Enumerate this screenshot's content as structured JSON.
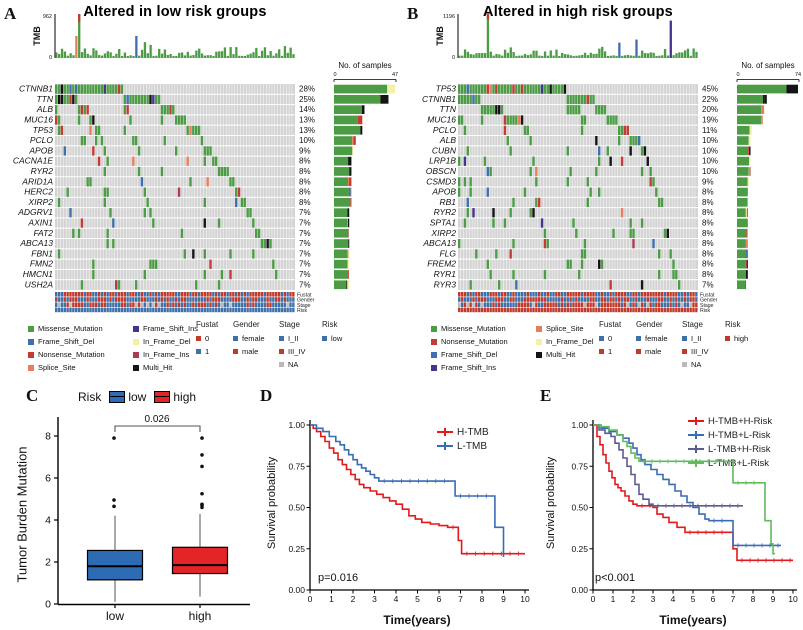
{
  "chart_data": [
    {
      "type": "oncoplot-waterfall",
      "panel_letter": "A",
      "title": "Altered in low risk groups",
      "tmb_axis": {
        "label": "TMB",
        "max": "962",
        "min": "0"
      },
      "samples_axis": {
        "label": "No. of samples",
        "min": "0",
        "max": "47"
      },
      "genes": [
        "CTNNB1",
        "TTN",
        "ALB",
        "MUC16",
        "TP53",
        "PCLO",
        "APOB",
        "CACNA1E",
        "RYR2",
        "ARID1A",
        "HERC2",
        "XIRP2",
        "ADGRV1",
        "AXIN1",
        "FAT2",
        "ABCA13",
        "FBN1",
        "FMN2",
        "HMCN1",
        "USH2A"
      ],
      "alteration_pct": [
        28,
        25,
        14,
        13,
        13,
        10,
        9,
        8,
        8,
        8,
        8,
        8,
        7,
        7,
        7,
        7,
        7,
        7,
        7,
        7
      ],
      "clinical_tracks": [
        "Fustat",
        "Gender",
        "Stage",
        "Risk"
      ],
      "n_columns": 84,
      "seed": 42,
      "matrix_bg": "#d4d4d4",
      "cell_color_weights": [
        {
          "color": "#4c9b45",
          "w": 0.78
        },
        {
          "color": "#3f6fae",
          "w": 0.05
        },
        {
          "color": "#c43b34",
          "w": 0.05
        },
        {
          "color": "#e97c5a",
          "w": 0.04
        },
        {
          "color": "#141414",
          "w": 0.05
        },
        {
          "color": "#45348e",
          "w": 0.02
        },
        {
          "color": "#aa3b52",
          "w": 0.01
        }
      ],
      "tmb_spikes": [
        {
          "c": 7,
          "f": 0.5,
          "color": "#e97c5a"
        },
        {
          "c": 8,
          "f": 1.0,
          "color": "#4c9b45",
          "tip": {
            "f": 0.18,
            "color": "#c43b34"
          }
        },
        {
          "c": 28,
          "f": 0.5,
          "color": "#3f6fae"
        },
        {
          "c": 31,
          "f": 0.36,
          "color": "#4c9b45"
        },
        {
          "c": 33,
          "f": 0.3,
          "color": "#4c9b45"
        }
      ],
      "track_fractions": {
        "fustat_red": 0.62,
        "gender_blue": 0.6,
        "stage_blue": 0.55,
        "stage_red": 0.35,
        "risk_color": "#3d6fa8"
      },
      "mutation_legend_cols": [
        [
          {
            "label": "Missense_Mutation",
            "color": "#4c9b45"
          },
          {
            "label": "Frame_Shift_Del",
            "color": "#3f6fae"
          },
          {
            "label": "Nonsense_Mutation",
            "color": "#c43b34"
          },
          {
            "label": "Splice_Site",
            "color": "#e97c5a"
          }
        ],
        [
          {
            "label": "Frame_Shift_Ins",
            "color": "#45348e"
          },
          {
            "label": "In_Frame_Del",
            "color": "#f3f1a3"
          },
          {
            "label": "In_Frame_Ins",
            "color": "#aa3b52"
          },
          {
            "label": "Multi_Hit",
            "color": "#141414"
          }
        ]
      ],
      "clinical_legend": [
        {
          "title": "Fustat",
          "items": [
            {
              "label": "0",
              "color": "#c0392b"
            },
            {
              "label": "1",
              "color": "#3d6fa8"
            }
          ]
        },
        {
          "title": "Gender",
          "items": [
            {
              "label": "female",
              "color": "#3d6fa8"
            },
            {
              "label": "male",
              "color": "#c0392b"
            }
          ]
        },
        {
          "title": "Stage",
          "items": [
            {
              "label": "I_II",
              "color": "#3d6fa8"
            },
            {
              "label": "III_IV",
              "color": "#c0392b"
            },
            {
              "label": "NA",
              "color": "#b9b9b9"
            }
          ]
        },
        {
          "title": "Risk",
          "items": [
            {
              "label": "low",
              "color": "#3d6fa8"
            }
          ]
        }
      ]
    },
    {
      "type": "oncoplot-waterfall",
      "panel_letter": "B",
      "title": "Altered in high risk groups",
      "tmb_axis": {
        "label": "TMB",
        "max": "1196",
        "min": "0"
      },
      "samples_axis": {
        "label": "No. of samples",
        "min": "0",
        "max": "74"
      },
      "genes": [
        "TP53",
        "CTNNB1",
        "TTN",
        "MUC16",
        "PCLO",
        "ALB",
        "CUBN",
        "LRP1B",
        "OBSCN",
        "CSMD3",
        "APOB",
        "RB1",
        "RYR2",
        "SPTA1",
        "XIRP2",
        "ABCA13",
        "FLG",
        "FREM2",
        "RYR1",
        "RYR3"
      ],
      "alteration_pct": [
        45,
        22,
        20,
        19,
        11,
        10,
        10,
        10,
        10,
        9,
        8,
        8,
        8,
        8,
        8,
        8,
        8,
        8,
        8,
        7
      ],
      "clinical_tracks": [
        "Fustat",
        "Gender",
        "Stage",
        "Risk"
      ],
      "n_columns": 84,
      "seed": 1337,
      "matrix_bg": "#d4d4d4",
      "cell_color_weights": [
        {
          "color": "#4c9b45",
          "w": 0.78
        },
        {
          "color": "#3f6fae",
          "w": 0.05
        },
        {
          "color": "#c43b34",
          "w": 0.05
        },
        {
          "color": "#e97c5a",
          "w": 0.04
        },
        {
          "color": "#141414",
          "w": 0.05
        },
        {
          "color": "#45348e",
          "w": 0.02
        },
        {
          "color": "#aa3b52",
          "w": 0.01
        }
      ],
      "tmb_spikes": [
        {
          "c": 10,
          "f": 1.0,
          "color": "#4c9b45",
          "tip": {
            "f": 0.12,
            "color": "#c43b34"
          }
        },
        {
          "c": 56,
          "f": 0.35,
          "color": "#3f6fae"
        },
        {
          "c": 62,
          "f": 0.42,
          "color": "#3f6fae"
        },
        {
          "c": 74,
          "f": 0.85,
          "color": "#45348e"
        }
      ],
      "track_fractions": {
        "fustat_red": 0.55,
        "gender_blue": 0.52,
        "stage_blue": 0.45,
        "stage_red": 0.45,
        "risk_color": "#c0392b"
      },
      "mutation_legend_cols": [
        [
          {
            "label": "Missense_Mutation",
            "color": "#4c9b45"
          },
          {
            "label": "Nonsense_Mutation",
            "color": "#c43b34"
          },
          {
            "label": "Frame_Shift_Del",
            "color": "#3f6fae"
          },
          {
            "label": "Frame_Shift_Ins",
            "color": "#45348e"
          }
        ],
        [
          {
            "label": "Splice_Site",
            "color": "#e97c5a"
          },
          {
            "label": "In_Frame_Del",
            "color": "#f3f1a3"
          },
          {
            "label": "Multi_Hit",
            "color": "#141414"
          }
        ]
      ],
      "clinical_legend": [
        {
          "title": "Fustat",
          "items": [
            {
              "label": "0",
              "color": "#3d6fa8"
            },
            {
              "label": "1",
              "color": "#c0392b"
            }
          ]
        },
        {
          "title": "Gender",
          "items": [
            {
              "label": "female",
              "color": "#3d6fa8"
            },
            {
              "label": "male",
              "color": "#c0392b"
            }
          ]
        },
        {
          "title": "Stage",
          "items": [
            {
              "label": "I_II",
              "color": "#3d6fa8"
            },
            {
              "label": "III_IV",
              "color": "#c0392b"
            },
            {
              "label": "NA",
              "color": "#b9b9b9"
            }
          ]
        },
        {
          "title": "Risk",
          "items": [
            {
              "label": "high",
              "color": "#c0392b"
            }
          ]
        }
      ]
    },
    {
      "type": "box",
      "panel_letter": "C",
      "ylabel": "Tumor Burden Mutation",
      "legend_title": "Risk",
      "p_label": "0.026",
      "yticks": [
        0,
        2,
        4,
        6,
        8
      ],
      "groups": [
        {
          "name": "low",
          "color": "#2d6cb5",
          "stats": {
            "low": 0.1,
            "q1": 1.15,
            "med": 1.8,
            "q3": 2.55,
            "high": 4.2
          },
          "outliers": [
            4.65,
            4.95,
            7.9
          ]
        },
        {
          "name": "high",
          "color": "#e32528",
          "stats": {
            "low": 0.35,
            "q1": 1.45,
            "med": 1.85,
            "q3": 2.7,
            "high": 4.3
          },
          "outliers": [
            4.6,
            4.7,
            4.75,
            5.25,
            6.55,
            7.1,
            7.9
          ]
        }
      ]
    },
    {
      "type": "km",
      "panel_letter": "D",
      "ylabel": "Survival probability",
      "xlabel": "Time(years)",
      "p_label": "p=0.016",
      "xticks": [
        0,
        1,
        2,
        3,
        4,
        5,
        6,
        7,
        8,
        9,
        10
      ],
      "ytick_labels": [
        "0.00",
        "0.25",
        "0.50",
        "0.75",
        "1.00"
      ],
      "series": [
        {
          "name": "H-TMB",
          "color": "#e31a1c",
          "points": [
            [
              0,
              1
            ],
            [
              0.15,
              0.98
            ],
            [
              0.3,
              0.96
            ],
            [
              0.5,
              0.93
            ],
            [
              0.7,
              0.9
            ],
            [
              0.9,
              0.86
            ],
            [
              1.1,
              0.83
            ],
            [
              1.3,
              0.79
            ],
            [
              1.5,
              0.76
            ],
            [
              1.7,
              0.73
            ],
            [
              1.9,
              0.7
            ],
            [
              2.1,
              0.67
            ],
            [
              2.3,
              0.64
            ],
            [
              2.5,
              0.62
            ],
            [
              2.8,
              0.6
            ],
            [
              3.1,
              0.58
            ],
            [
              3.4,
              0.56
            ],
            [
              3.7,
              0.54
            ],
            [
              4,
              0.52
            ],
            [
              4.3,
              0.49
            ],
            [
              4.6,
              0.45
            ],
            [
              4.9,
              0.43
            ],
            [
              5.2,
              0.41
            ],
            [
              5.6,
              0.4
            ],
            [
              6,
              0.39
            ],
            [
              6.4,
              0.38
            ],
            [
              6.9,
              0.3
            ],
            [
              7.05,
              0.22
            ],
            [
              10,
              0.22
            ]
          ]
        },
        {
          "name": "L-TMB",
          "color": "#3a6cb3",
          "points": [
            [
              0,
              1
            ],
            [
              0.3,
              0.98
            ],
            [
              0.6,
              0.96
            ],
            [
              0.9,
              0.93
            ],
            [
              1.2,
              0.9
            ],
            [
              1.4,
              0.88
            ],
            [
              1.6,
              0.85
            ],
            [
              1.8,
              0.82
            ],
            [
              2,
              0.79
            ],
            [
              2.2,
              0.76
            ],
            [
              2.4,
              0.74
            ],
            [
              2.6,
              0.72
            ],
            [
              2.8,
              0.7
            ],
            [
              3,
              0.68
            ],
            [
              3.2,
              0.66
            ],
            [
              6.6,
              0.66
            ],
            [
              6.75,
              0.57
            ],
            [
              8.5,
              0.57
            ],
            [
              8.6,
              0.38
            ],
            [
              8.95,
              0.38
            ],
            [
              9,
              0.2
            ]
          ]
        }
      ]
    },
    {
      "type": "km",
      "panel_letter": "E",
      "ylabel": "Survival probability",
      "xlabel": "Time(years)",
      "p_label": "p<0.001",
      "xticks": [
        0,
        1,
        2,
        3,
        4,
        5,
        6,
        7,
        8,
        9,
        10
      ],
      "ytick_labels": [
        "0.00",
        "0.25",
        "0.50",
        "0.75",
        "1.00"
      ],
      "series": [
        {
          "name": "H-TMB+H-Risk",
          "color": "#e31a1c",
          "points": [
            [
              0,
              1
            ],
            [
              0.2,
              0.93
            ],
            [
              0.35,
              0.88
            ],
            [
              0.5,
              0.82
            ],
            [
              0.65,
              0.77
            ],
            [
              0.8,
              0.72
            ],
            [
              0.95,
              0.68
            ],
            [
              1.1,
              0.64
            ],
            [
              1.25,
              0.62
            ],
            [
              1.4,
              0.6
            ],
            [
              1.6,
              0.57
            ],
            [
              1.8,
              0.54
            ],
            [
              2,
              0.52
            ],
            [
              2.2,
              0.51
            ],
            [
              3,
              0.5
            ],
            [
              3.2,
              0.46
            ],
            [
              3.5,
              0.44
            ],
            [
              3.8,
              0.41
            ],
            [
              4.2,
              0.38
            ],
            [
              4.6,
              0.35
            ],
            [
              6.8,
              0.35
            ],
            [
              7,
              0.25
            ],
            [
              7.2,
              0.18
            ],
            [
              10,
              0.18
            ]
          ]
        },
        {
          "name": "H-TMB+L-Risk",
          "color": "#3a6cb3",
          "points": [
            [
              0,
              1
            ],
            [
              0.4,
              0.98
            ],
            [
              0.8,
              0.96
            ],
            [
              1.2,
              0.94
            ],
            [
              1.5,
              0.92
            ],
            [
              1.8,
              0.89
            ],
            [
              2,
              0.86
            ],
            [
              2.2,
              0.82
            ],
            [
              2.4,
              0.79
            ],
            [
              2.6,
              0.76
            ],
            [
              2.9,
              0.73
            ],
            [
              3.2,
              0.7
            ],
            [
              3.5,
              0.67
            ],
            [
              3.8,
              0.64
            ],
            [
              4.1,
              0.6
            ],
            [
              4.4,
              0.57
            ],
            [
              4.7,
              0.53
            ],
            [
              5,
              0.5
            ],
            [
              5.3,
              0.46
            ],
            [
              5.6,
              0.43
            ],
            [
              5.8,
              0.42
            ],
            [
              6.8,
              0.42
            ],
            [
              7,
              0.27
            ],
            [
              9.4,
              0.27
            ]
          ]
        },
        {
          "name": "L-TMB+H-Risk",
          "color": "#5b5b8f",
          "points": [
            [
              0,
              1
            ],
            [
              0.3,
              0.97
            ],
            [
              0.6,
              0.95
            ],
            [
              0.9,
              0.93
            ],
            [
              1.1,
              0.89
            ],
            [
              1.3,
              0.85
            ],
            [
              1.5,
              0.8
            ],
            [
              1.7,
              0.75
            ],
            [
              1.9,
              0.7
            ],
            [
              2.1,
              0.64
            ],
            [
              2.3,
              0.58
            ],
            [
              2.5,
              0.55
            ],
            [
              2.8,
              0.52
            ],
            [
              3,
              0.51
            ],
            [
              7.5,
              0.51
            ]
          ]
        },
        {
          "name": "L-TMB+L-Risk",
          "color": "#62bb5e",
          "points": [
            [
              0,
              1
            ],
            [
              0.4,
              0.99
            ],
            [
              0.8,
              0.97
            ],
            [
              1.2,
              0.94
            ],
            [
              1.5,
              0.9
            ],
            [
              1.7,
              0.87
            ],
            [
              1.9,
              0.83
            ],
            [
              2.1,
              0.8
            ],
            [
              2.3,
              0.78
            ],
            [
              6.8,
              0.78
            ],
            [
              7,
              0.65
            ],
            [
              8.5,
              0.65
            ],
            [
              8.6,
              0.42
            ],
            [
              8.9,
              0.28
            ],
            [
              9,
              0.22
            ],
            [
              9.1,
              0.22
            ]
          ]
        }
      ]
    }
  ]
}
